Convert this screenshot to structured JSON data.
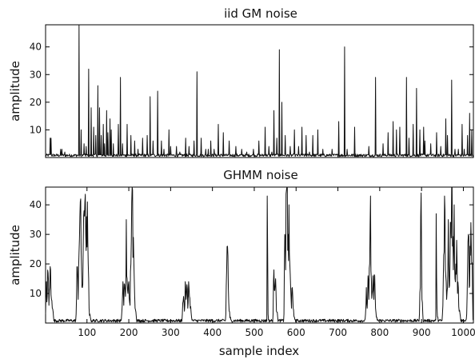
{
  "chart_data": [
    {
      "type": "line",
      "title": "iid GM noise",
      "xlabel": "",
      "ylabel": "amplitude",
      "xlim": [
        1,
        1024
      ],
      "ylim": [
        0,
        48
      ],
      "yticks": [
        10,
        20,
        30,
        40
      ],
      "xticks": [],
      "grid": false,
      "baseline_level": 1,
      "spikes": [
        [
          12,
          7
        ],
        [
          14,
          7
        ],
        [
          37,
          3
        ],
        [
          40,
          3
        ],
        [
          47,
          2
        ],
        [
          81,
          48
        ],
        [
          86,
          10
        ],
        [
          93,
          5
        ],
        [
          98,
          4
        ],
        [
          104,
          32
        ],
        [
          110,
          18
        ],
        [
          116,
          11
        ],
        [
          121,
          8
        ],
        [
          126,
          26
        ],
        [
          130,
          18
        ],
        [
          134,
          8
        ],
        [
          139,
          12
        ],
        [
          142,
          5
        ],
        [
          147,
          17
        ],
        [
          150,
          9
        ],
        [
          155,
          14
        ],
        [
          158,
          10
        ],
        [
          163,
          5
        ],
        [
          175,
          12
        ],
        [
          180,
          29
        ],
        [
          185,
          5
        ],
        [
          196,
          12
        ],
        [
          205,
          8
        ],
        [
          214,
          6
        ],
        [
          222,
          3
        ],
        [
          233,
          7
        ],
        [
          244,
          8
        ],
        [
          251,
          22
        ],
        [
          258,
          6
        ],
        [
          269,
          24
        ],
        [
          278,
          6
        ],
        [
          284,
          3
        ],
        [
          296,
          10
        ],
        [
          300,
          4
        ],
        [
          314,
          4
        ],
        [
          322,
          2
        ],
        [
          336,
          7
        ],
        [
          344,
          4
        ],
        [
          356,
          6
        ],
        [
          363,
          31
        ],
        [
          373,
          7
        ],
        [
          384,
          3
        ],
        [
          390,
          3
        ],
        [
          396,
          6
        ],
        [
          404,
          3
        ],
        [
          414,
          12
        ],
        [
          426,
          9
        ],
        [
          440,
          6
        ],
        [
          456,
          4
        ],
        [
          470,
          3
        ],
        [
          482,
          2
        ],
        [
          498,
          3
        ],
        [
          511,
          6
        ],
        [
          526,
          11
        ],
        [
          535,
          4
        ],
        [
          542,
          2
        ],
        [
          547,
          17
        ],
        [
          554,
          7
        ],
        [
          560,
          39
        ],
        [
          566,
          20
        ],
        [
          574,
          8
        ],
        [
          586,
          4
        ],
        [
          596,
          10
        ],
        [
          606,
          4
        ],
        [
          614,
          11
        ],
        [
          624,
          8
        ],
        [
          632,
          2
        ],
        [
          640,
          8
        ],
        [
          652,
          10
        ],
        [
          664,
          3
        ],
        [
          686,
          3
        ],
        [
          702,
          13
        ],
        [
          716,
          40
        ],
        [
          722,
          3
        ],
        [
          740,
          11
        ],
        [
          774,
          4
        ],
        [
          790,
          29
        ],
        [
          808,
          5
        ],
        [
          820,
          9
        ],
        [
          832,
          13
        ],
        [
          840,
          10
        ],
        [
          848,
          11
        ],
        [
          864,
          29
        ],
        [
          870,
          7
        ],
        [
          880,
          12
        ],
        [
          888,
          25
        ],
        [
          896,
          10
        ],
        [
          905,
          11
        ],
        [
          908,
          6
        ],
        [
          922,
          5
        ],
        [
          936,
          9
        ],
        [
          946,
          4
        ],
        [
          958,
          14
        ],
        [
          962,
          8
        ],
        [
          972,
          28
        ],
        [
          980,
          3
        ],
        [
          988,
          3
        ],
        [
          997,
          12
        ],
        [
          1002,
          3
        ],
        [
          1010,
          8
        ],
        [
          1015,
          16
        ],
        [
          1020,
          10
        ]
      ]
    },
    {
      "type": "line",
      "title": "GHMM noise",
      "xlabel": "sample index",
      "ylabel": "amplitude",
      "xlim": [
        1,
        1024
      ],
      "ylim": [
        0,
        46
      ],
      "yticks": [
        10,
        20,
        30,
        40
      ],
      "xticks": [
        100,
        200,
        300,
        400,
        500,
        600,
        700,
        800,
        900,
        1000
      ],
      "grid": false,
      "baseline_level": 1,
      "bursts": [
        [
          [
            1,
            3
          ],
          [
            3,
            14
          ],
          [
            5,
            9
          ],
          [
            7,
            17
          ],
          [
            9,
            6
          ],
          [
            11,
            12
          ],
          [
            13,
            18
          ],
          [
            15,
            8
          ],
          [
            17,
            5
          ],
          [
            20,
            2
          ]
        ],
        [
          [
            74,
            3
          ],
          [
            77,
            19
          ],
          [
            79,
            8
          ],
          [
            81,
            24
          ],
          [
            83,
            36
          ],
          [
            85,
            42
          ],
          [
            87,
            18
          ],
          [
            89,
            12
          ],
          [
            91,
            26
          ],
          [
            93,
            38
          ],
          [
            95,
            41
          ],
          [
            97,
            30
          ],
          [
            99,
            36
          ],
          [
            101,
            41
          ],
          [
            103,
            20
          ],
          [
            105,
            5
          ],
          [
            108,
            2
          ]
        ],
        [
          [
            183,
            3
          ],
          [
            186,
            14
          ],
          [
            188,
            6
          ],
          [
            190,
            13
          ],
          [
            192,
            9
          ],
          [
            194,
            35
          ],
          [
            196,
            15
          ],
          [
            198,
            10
          ],
          [
            200,
            14
          ],
          [
            203,
            6
          ],
          [
            205,
            20
          ],
          [
            207,
            41
          ],
          [
            209,
            45
          ],
          [
            211,
            29
          ],
          [
            213,
            15
          ],
          [
            215,
            5
          ],
          [
            218,
            2
          ]
        ],
        [
          [
            328,
            3
          ],
          [
            331,
            9
          ],
          [
            333,
            4
          ],
          [
            335,
            14
          ],
          [
            337,
            8
          ],
          [
            339,
            13
          ],
          [
            341,
            5
          ],
          [
            343,
            14
          ],
          [
            345,
            9
          ],
          [
            347,
            5
          ],
          [
            350,
            2
          ]
        ],
        [
          [
            432,
            3
          ],
          [
            434,
            18
          ],
          [
            436,
            26
          ],
          [
            438,
            12
          ],
          [
            440,
            4
          ],
          [
            443,
            2
          ]
        ],
        [
          [
            531,
            43
          ],
          [
            533,
            3
          ]
        ],
        [
          [
            545,
            3
          ],
          [
            547,
            18
          ],
          [
            549,
            11
          ],
          [
            551,
            15
          ],
          [
            553,
            4
          ],
          [
            556,
            2
          ]
        ],
        [
          [
            571,
            3
          ],
          [
            573,
            30
          ],
          [
            575,
            18
          ],
          [
            577,
            45
          ],
          [
            579,
            46
          ],
          [
            581,
            30
          ],
          [
            583,
            40
          ],
          [
            585,
            20
          ],
          [
            587,
            12
          ],
          [
            589,
            5
          ],
          [
            591,
            12
          ],
          [
            593,
            5
          ],
          [
            596,
            2
          ]
        ],
        [
          [
            766,
            3
          ],
          [
            768,
            12
          ],
          [
            770,
            5
          ],
          [
            772,
            16
          ],
          [
            774,
            8
          ],
          [
            776,
            20
          ],
          [
            778,
            43
          ],
          [
            780,
            15
          ],
          [
            782,
            10
          ],
          [
            784,
            16
          ],
          [
            786,
            8
          ],
          [
            788,
            16
          ],
          [
            790,
            5
          ],
          [
            793,
            2
          ]
        ],
        [
          [
            895,
            3
          ],
          [
            897,
            12
          ],
          [
            899,
            44
          ],
          [
            901,
            8
          ],
          [
            903,
            3
          ]
        ],
        [
          [
            935,
            37
          ],
          [
            937,
            5
          ],
          [
            939,
            2
          ]
        ],
        [
          [
            950,
            3
          ],
          [
            952,
            15
          ],
          [
            954,
            24
          ],
          [
            956,
            38
          ],
          [
            958,
            16
          ],
          [
            960,
            8
          ],
          [
            962,
            12
          ],
          [
            964,
            35
          ],
          [
            966,
            12
          ],
          [
            968,
            20
          ],
          [
            970,
            34
          ],
          [
            972,
            46
          ],
          [
            974,
            26
          ],
          [
            976,
            18
          ],
          [
            978,
            40
          ],
          [
            980,
            15
          ],
          [
            982,
            20
          ],
          [
            984,
            28
          ],
          [
            986,
            10
          ],
          [
            988,
            12
          ],
          [
            990,
            4
          ],
          [
            993,
            2
          ]
        ],
        [
          [
            1008,
            3
          ],
          [
            1010,
            18
          ],
          [
            1012,
            30
          ],
          [
            1014,
            12
          ],
          [
            1016,
            26
          ],
          [
            1018,
            34
          ],
          [
            1020,
            20
          ],
          [
            1022,
            10
          ]
        ]
      ]
    }
  ]
}
